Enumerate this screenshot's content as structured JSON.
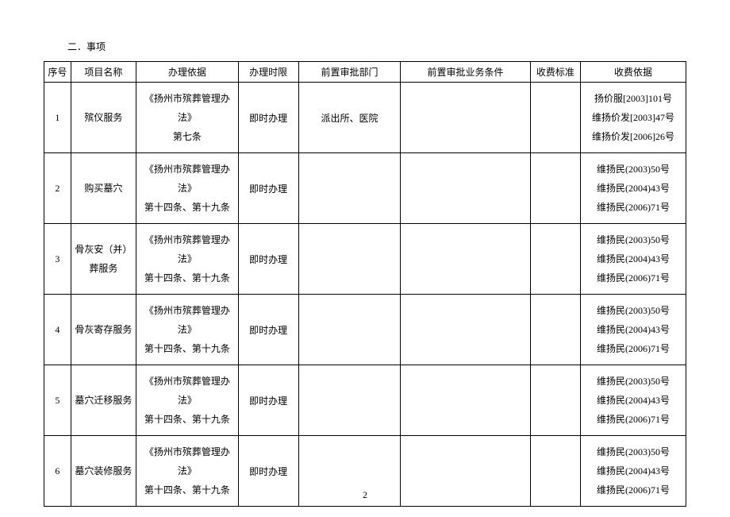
{
  "section_title": "二．事项",
  "page_number": "2",
  "headers": {
    "seq": "序号",
    "name": "项目名称",
    "basis": "办理依据",
    "time": "办理时限",
    "dept": "前置审批部门",
    "cond": "前置审批业务条件",
    "fee": "收费标准",
    "feebasis": "收费依据"
  },
  "rows": [
    {
      "seq": "1",
      "name": "殡仪服务",
      "basis": "《扬州市殡葬管理办法》\n第七条",
      "time": "即时办理",
      "dept": "派出所、医院",
      "cond": "",
      "fee": "",
      "feebasis": "扬价服[2003]101号\n维扬价发[2003]47号\n维扬价发[2006]26号"
    },
    {
      "seq": "2",
      "name": "购买墓穴",
      "basis": "《扬州市殡葬管理办法》\n第十四条、第十九条",
      "time": "即时办理",
      "dept": "",
      "cond": "",
      "fee": "",
      "feebasis": "维扬民(2003)50号\n维扬民(2004)43号\n维扬民(2006)71号"
    },
    {
      "seq": "3",
      "name": "骨灰安（并）\n葬服务",
      "basis": "《扬州市殡葬管理办法》\n第十四条、第十九条",
      "time": "即时办理",
      "dept": "",
      "cond": "",
      "fee": "",
      "feebasis": "维扬民(2003)50号\n维扬民(2004)43号\n维扬民(2006)71号"
    },
    {
      "seq": "4",
      "name": "骨灰寄存服务",
      "basis": "《扬州市殡葬管理办法》\n第十四条、第十九条",
      "time": "即时办理",
      "dept": "",
      "cond": "",
      "fee": "",
      "feebasis": "维扬民(2003)50号\n维扬民(2004)43号\n维扬民(2006)71号"
    },
    {
      "seq": "5",
      "name": "墓穴迁移服务",
      "basis": "《扬州市殡葬管理办法》\n第十四条、第十九条",
      "time": "即时办理",
      "dept": "",
      "cond": "",
      "fee": "",
      "feebasis": "维扬民(2003)50号\n维扬民(2004)43号\n维扬民(2006)71号"
    },
    {
      "seq": "6",
      "name": "墓穴装修服务",
      "basis": "《扬州市殡葬管理办法》\n第十四条、第十九条",
      "time": "即时办理",
      "dept": "",
      "cond": "",
      "fee": "",
      "feebasis": "维扬民(2003)50号\n维扬民(2004)43号\n维扬民(2006)71号"
    }
  ]
}
